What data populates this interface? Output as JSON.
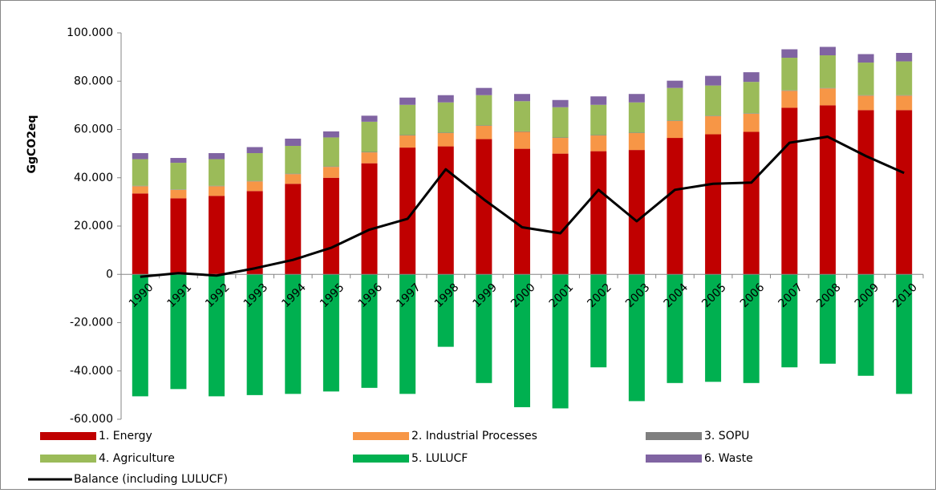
{
  "chart_data": {
    "type": "bar",
    "y_label": "GgCO2eq",
    "categories": [
      "1990",
      "1991",
      "1992",
      "1993",
      "1994",
      "1995",
      "1996",
      "1997",
      "1998",
      "1999",
      "2000",
      "2001",
      "2002",
      "2003",
      "2004",
      "2005",
      "2006",
      "2007",
      "2008",
      "2009",
      "2010"
    ],
    "ylim": [
      -60000,
      100000
    ],
    "yticks": [
      {
        "value": -60000,
        "label": "-60.000"
      },
      {
        "value": -40000,
        "label": "-40.000"
      },
      {
        "value": -20000,
        "label": "-20.000"
      },
      0,
      {
        "value": 20000,
        "label": "20.000"
      },
      {
        "value": 40000,
        "label": "40.000"
      },
      {
        "value": 60000,
        "label": "60.000"
      },
      {
        "value": 80000,
        "label": "80.000"
      },
      {
        "value": 100000,
        "label": "100.000"
      }
    ],
    "grid": false,
    "series": [
      {
        "name": "1. Energy",
        "type": "bar",
        "color": "#c00000",
        "values": [
          33500,
          31500,
          32500,
          34500,
          37500,
          40000,
          46000,
          52500,
          53000,
          56000,
          52000,
          50000,
          51000,
          51500,
          56500,
          58000,
          59000,
          69000,
          70000,
          68000,
          68000
        ]
      },
      {
        "name": "2. Industrial Processes",
        "type": "bar",
        "color": "#f79646",
        "values": [
          3000,
          3500,
          4000,
          4000,
          4000,
          4500,
          4500,
          5000,
          5500,
          5500,
          7000,
          6500,
          6500,
          7000,
          7000,
          7500,
          7500,
          7000,
          7000,
          6000,
          6000
        ]
      },
      {
        "name": "3. SOPU",
        "type": "bar",
        "color": "#7f7f7f",
        "values": [
          200,
          200,
          200,
          200,
          200,
          200,
          200,
          200,
          200,
          200,
          200,
          200,
          200,
          200,
          200,
          200,
          200,
          200,
          200,
          200,
          200
        ]
      },
      {
        "name": "4. Agriculture",
        "type": "bar",
        "color": "#9bbb59",
        "values": [
          11000,
          11000,
          11000,
          11500,
          11500,
          12000,
          12500,
          12500,
          12500,
          12500,
          12500,
          12500,
          12500,
          12500,
          13500,
          12500,
          13000,
          13500,
          13500,
          13500,
          14000
        ]
      },
      {
        "name": "5. LULUCF",
        "type": "bar",
        "color": "#00b050",
        "values": [
          -50500,
          -47500,
          -50500,
          -50000,
          -49500,
          -48500,
          -47000,
          -49500,
          -30000,
          -45000,
          -55000,
          -55500,
          -38500,
          -52500,
          -45000,
          -44500,
          -45000,
          -38500,
          -37000,
          -42000,
          -49500
        ]
      },
      {
        "name": "6. Waste",
        "type": "bar",
        "color": "#8064a2",
        "values": [
          2500,
          2000,
          2500,
          2500,
          3000,
          2500,
          2500,
          3000,
          3000,
          3000,
          3000,
          3000,
          3500,
          3500,
          3000,
          4000,
          4000,
          3500,
          3500,
          3500,
          3500
        ]
      },
      {
        "name": "Balance (including LULUCF)",
        "type": "line",
        "color": "#000000",
        "values": [
          -1000,
          500,
          -500,
          2500,
          6000,
          11000,
          18500,
          23000,
          43500,
          31000,
          19500,
          17000,
          35000,
          22000,
          35000,
          37500,
          38000,
          54500,
          57000,
          49000,
          42000
        ]
      }
    ]
  }
}
